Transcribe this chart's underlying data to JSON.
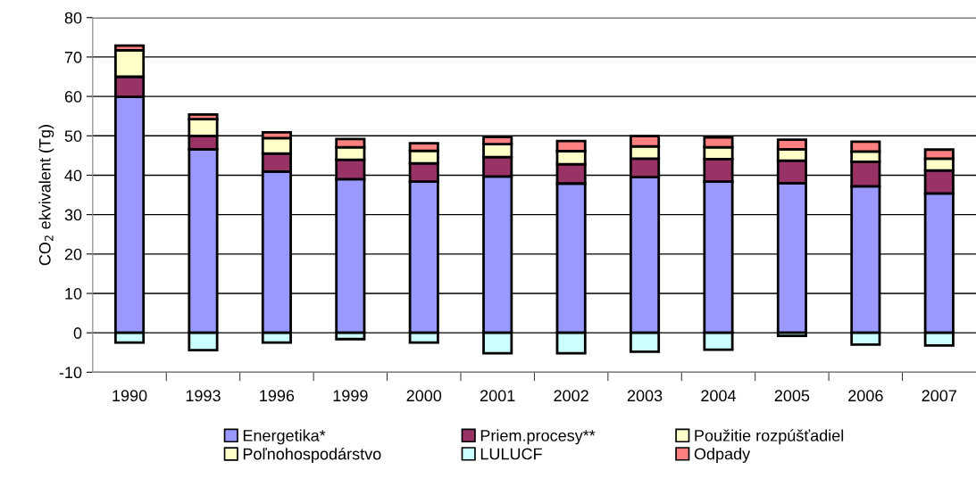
{
  "chart_data": {
    "type": "bar",
    "stacked": true,
    "ylabel": "CO$_{2}$ ekvivalent (Tg)",
    "categories": [
      "1990",
      "1993",
      "1996",
      "1999",
      "2000",
      "2001",
      "2002",
      "2003",
      "2004",
      "2005",
      "2006",
      "2007"
    ],
    "series": [
      {
        "name": "Energetika*",
        "color": "#9999ff",
        "values": [
          59.9,
          46.6,
          40.9,
          39.0,
          38.4,
          39.7,
          37.9,
          39.5,
          38.4,
          38.0,
          37.2,
          35.4
        ]
      },
      {
        "name": "Priem.procesy**",
        "color": "#993366",
        "values": [
          5.1,
          3.4,
          4.6,
          4.9,
          4.6,
          4.9,
          4.9,
          4.7,
          5.7,
          5.7,
          6.2,
          5.8
        ]
      },
      {
        "name": "Použitie rozpúšťadiel",
        "color": "#ffffcc",
        "values": [
          null,
          null,
          null,
          null,
          null,
          null,
          null,
          null,
          null,
          null,
          null,
          null
        ]
      },
      {
        "name": "Poľnohospodárstvo",
        "color": "#ffffc8",
        "values": [
          6.7,
          4.2,
          3.9,
          3.2,
          3.2,
          3.3,
          3.3,
          3.1,
          3.0,
          2.9,
          2.6,
          3.0
        ]
      },
      {
        "name": "LULUCF",
        "color": "#ccffff",
        "values": [
          -2.5,
          -4.4,
          -2.5,
          -1.6,
          -2.5,
          -5.2,
          -5.2,
          -4.8,
          -4.3,
          -0.8,
          -3.0,
          -3.2
        ]
      },
      {
        "name": "Odpady",
        "color": "#ff8080",
        "values": [
          1.2,
          1.2,
          1.5,
          2.1,
          1.9,
          1.8,
          2.6,
          2.6,
          2.5,
          2.4,
          2.5,
          2.3
        ]
      }
    ],
    "ylim": [
      -10,
      80
    ],
    "yticks": [
      -10,
      0,
      10,
      20,
      30,
      40,
      50,
      60,
      70,
      80
    ],
    "grid": "y",
    "legend": "bottom"
  }
}
